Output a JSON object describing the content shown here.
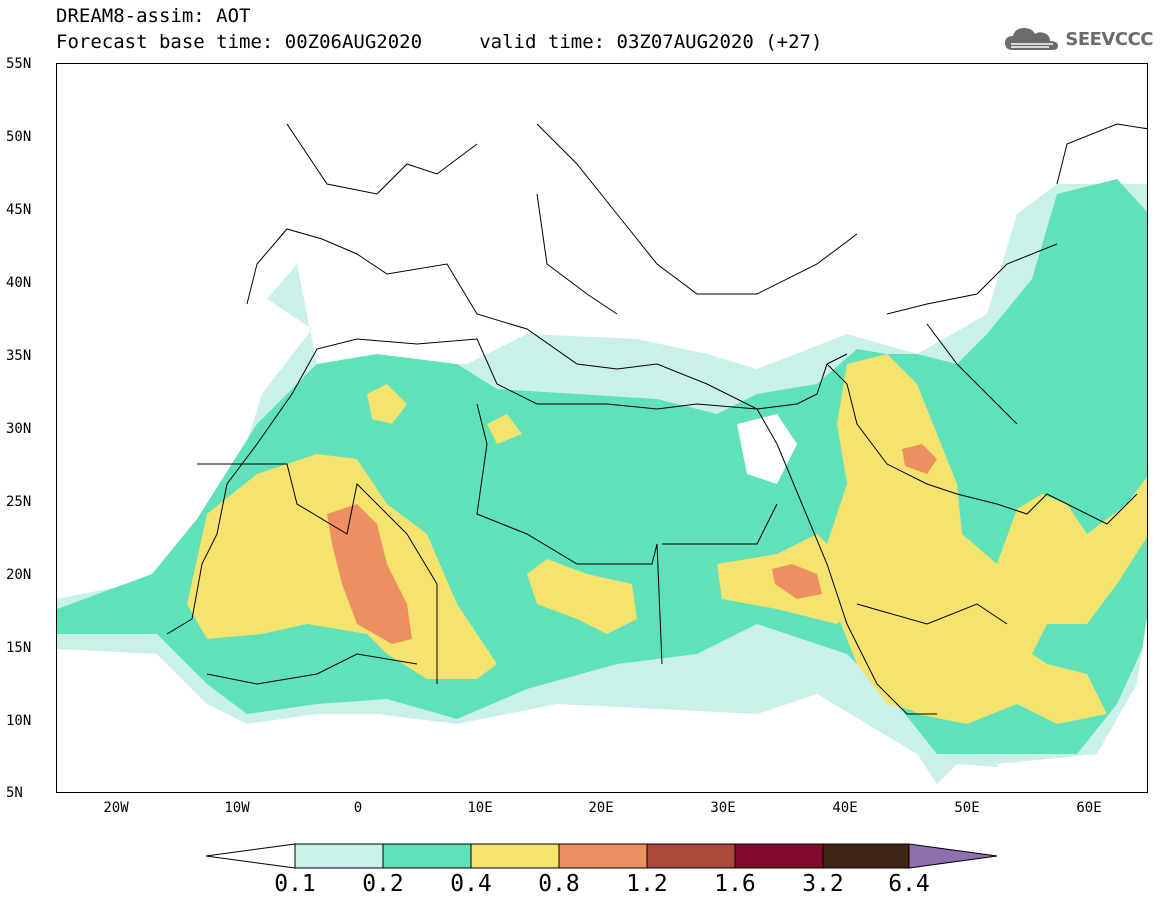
{
  "header": {
    "title_line1": "DREAM8-assim: AOT",
    "title_line2": "Forecast base time: 00Z06AUG2020     valid time: 03Z07AUG2020 (+27)"
  },
  "logo": {
    "text": "SEEVCCC",
    "icon": "cloud-icon",
    "color": "#6b6b6b"
  },
  "map": {
    "lat_ticks": [
      "55N",
      "50N",
      "45N",
      "40N",
      "35N",
      "30N",
      "25N",
      "20N",
      "15N",
      "10N",
      "5N"
    ],
    "lon_ticks": [
      "20W",
      "10W",
      "0",
      "10E",
      "20E",
      "30E",
      "40E",
      "50E",
      "60E"
    ],
    "extent": {
      "lon": [
        -25,
        65
      ],
      "lat": [
        5,
        55
      ]
    }
  },
  "legend": {
    "labels": [
      "0.1",
      "0.2",
      "0.4",
      "0.8",
      "1.2",
      "1.6",
      "3.2",
      "6.4"
    ],
    "colors": [
      "#c9f1ea",
      "#5fe1b9",
      "#f4e46f",
      "#ec8f61",
      "#a9493c",
      "#7f0a2c",
      "#3e2514",
      "#8e6fb0"
    ],
    "under_color": "#ffffff"
  }
}
